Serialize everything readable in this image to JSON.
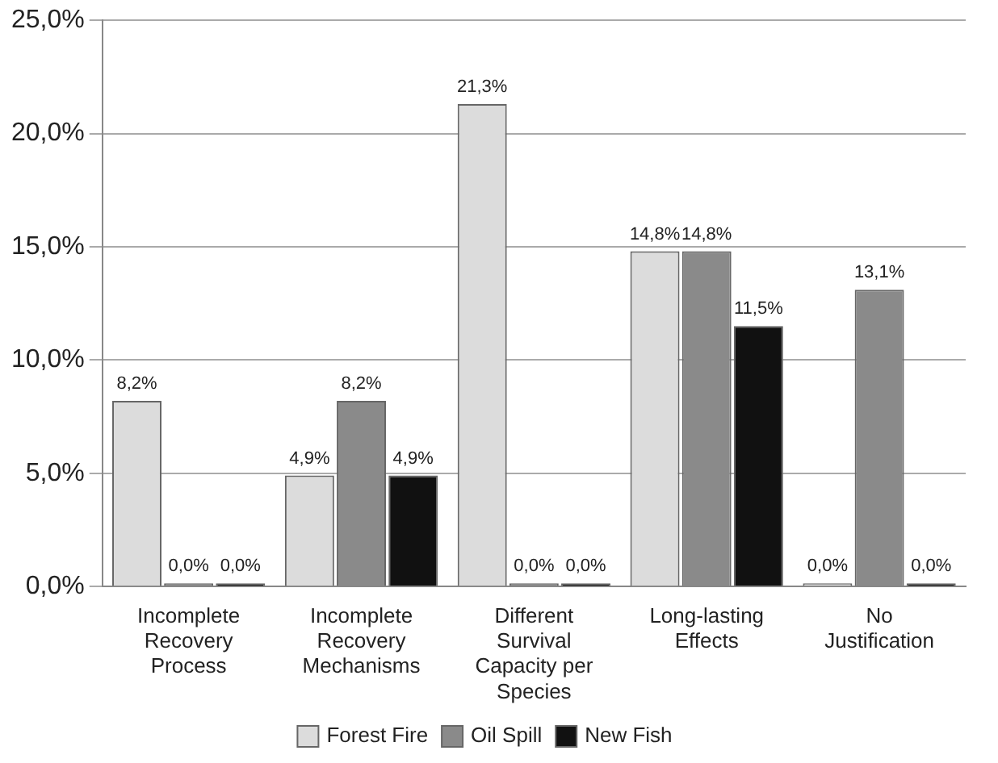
{
  "chart_data": {
    "type": "bar",
    "categories": [
      "Incomplete Recovery Process",
      "Incomplete Recovery Mechanisms",
      "Different Survival Capacity per Species",
      "Long-lasting Effects",
      "No Justification"
    ],
    "series": [
      {
        "name": "Forest Fire",
        "color": "#dcdcdc",
        "values": [
          8.2,
          4.9,
          21.3,
          14.8,
          0.0
        ],
        "value_labels": [
          "8,2%",
          "4,9%",
          "21,3%",
          "14,8%",
          "0,0%"
        ]
      },
      {
        "name": "Oil Spill",
        "color": "#8a8a8a",
        "values": [
          0.0,
          8.2,
          0.0,
          14.8,
          13.1
        ],
        "value_labels": [
          "0,0%",
          "8,2%",
          "0,0%",
          "14,8%",
          "13,1%"
        ]
      },
      {
        "name": "New Fish",
        "color": "#111111",
        "values": [
          0.0,
          4.9,
          0.0,
          11.5,
          0.0
        ],
        "value_labels": [
          "0,0%",
          "4,9%",
          "0,0%",
          "11,5%",
          "0,0%"
        ]
      }
    ],
    "ylim": [
      0,
      25
    ],
    "yticks": [
      {
        "value": 0,
        "label": "0,0%"
      },
      {
        "value": 5,
        "label": "5,0%"
      },
      {
        "value": 10,
        "label": "10,0%"
      },
      {
        "value": 15,
        "label": "15,0%"
      },
      {
        "value": 20,
        "label": "20,0%"
      },
      {
        "value": 25,
        "label": "25,0%"
      }
    ],
    "grid": "y",
    "legend": "bottom"
  }
}
